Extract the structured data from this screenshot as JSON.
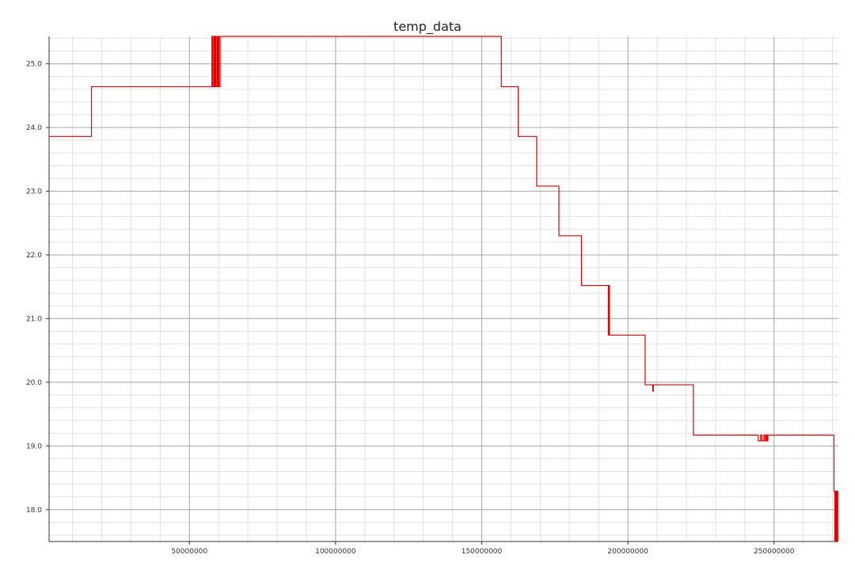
{
  "chart_data": {
    "type": "line",
    "title": "temp_data",
    "xlabel": "",
    "ylabel": "",
    "xlim": [
      2000000,
      272000000
    ],
    "ylim": [
      17.5,
      25.43
    ],
    "grid": true,
    "minor_grid": true,
    "x_ticks": [
      50000000,
      100000000,
      150000000,
      200000000,
      250000000
    ],
    "x_tick_labels": [
      "50000000",
      "100000000",
      "150000000",
      "200000000",
      "250000000"
    ],
    "y_ticks": [
      18,
      19,
      20,
      21,
      22,
      23,
      24,
      25
    ],
    "y_tick_labels": [
      "18.0",
      "19.0",
      "20.0",
      "21.0",
      "22.0",
      "23.0",
      "24.0",
      "25.0"
    ],
    "series": [
      {
        "color": "#e00000",
        "step": true,
        "points": [
          [
            2000000,
            23.86
          ],
          [
            16500000,
            23.86
          ],
          [
            16500000,
            24.64
          ],
          [
            57700000,
            24.64
          ],
          [
            57700000,
            25.43
          ],
          [
            57900000,
            25.43
          ],
          [
            57900000,
            24.64
          ],
          [
            58300000,
            24.64
          ],
          [
            58300000,
            25.43
          ],
          [
            58500000,
            25.43
          ],
          [
            58500000,
            24.64
          ],
          [
            58800000,
            24.64
          ],
          [
            58800000,
            25.43
          ],
          [
            59000000,
            25.43
          ],
          [
            59000000,
            24.64
          ],
          [
            59400000,
            24.64
          ],
          [
            59400000,
            25.43
          ],
          [
            59600000,
            25.43
          ],
          [
            59600000,
            24.64
          ],
          [
            59900000,
            24.64
          ],
          [
            59900000,
            25.43
          ],
          [
            60100000,
            25.43
          ],
          [
            60100000,
            24.64
          ],
          [
            60500000,
            24.64
          ],
          [
            60500000,
            25.43
          ],
          [
            156700000,
            25.43
          ],
          [
            156700000,
            24.64
          ],
          [
            162500000,
            24.64
          ],
          [
            162500000,
            23.86
          ],
          [
            168800000,
            23.86
          ],
          [
            168800000,
            23.08
          ],
          [
            176400000,
            23.08
          ],
          [
            176400000,
            22.3
          ],
          [
            184100000,
            22.3
          ],
          [
            184100000,
            21.52
          ],
          [
            193300000,
            21.52
          ],
          [
            193300000,
            20.74
          ],
          [
            193500000,
            20.74
          ],
          [
            193500000,
            21.52
          ],
          [
            193700000,
            21.52
          ],
          [
            193700000,
            20.74
          ],
          [
            205900000,
            20.74
          ],
          [
            205900000,
            19.96
          ],
          [
            208500000,
            19.96
          ],
          [
            208500000,
            19.86
          ],
          [
            208700000,
            19.86
          ],
          [
            208700000,
            19.96
          ],
          [
            222400000,
            19.96
          ],
          [
            222400000,
            19.17
          ],
          [
            244600000,
            19.17
          ],
          [
            244600000,
            19.08
          ],
          [
            245400000,
            19.08
          ],
          [
            245400000,
            19.17
          ],
          [
            245800000,
            19.17
          ],
          [
            245800000,
            19.08
          ],
          [
            246500000,
            19.08
          ],
          [
            246500000,
            19.17
          ],
          [
            246900000,
            19.17
          ],
          [
            246900000,
            19.08
          ],
          [
            247300000,
            19.08
          ],
          [
            247300000,
            19.17
          ],
          [
            247600000,
            19.17
          ],
          [
            247600000,
            19.08
          ],
          [
            247900000,
            19.08
          ],
          [
            247900000,
            19.17
          ],
          [
            270500000,
            19.17
          ],
          [
            270500000,
            18.29
          ],
          [
            270800000,
            18.29
          ],
          [
            270800000,
            17.5
          ],
          [
            271000000,
            17.5
          ],
          [
            271000000,
            18.29
          ],
          [
            271300000,
            18.29
          ],
          [
            271300000,
            17.5
          ],
          [
            271500000,
            17.5
          ],
          [
            271500000,
            18.29
          ],
          [
            271800000,
            18.29
          ],
          [
            271800000,
            17.5
          ]
        ]
      }
    ]
  }
}
